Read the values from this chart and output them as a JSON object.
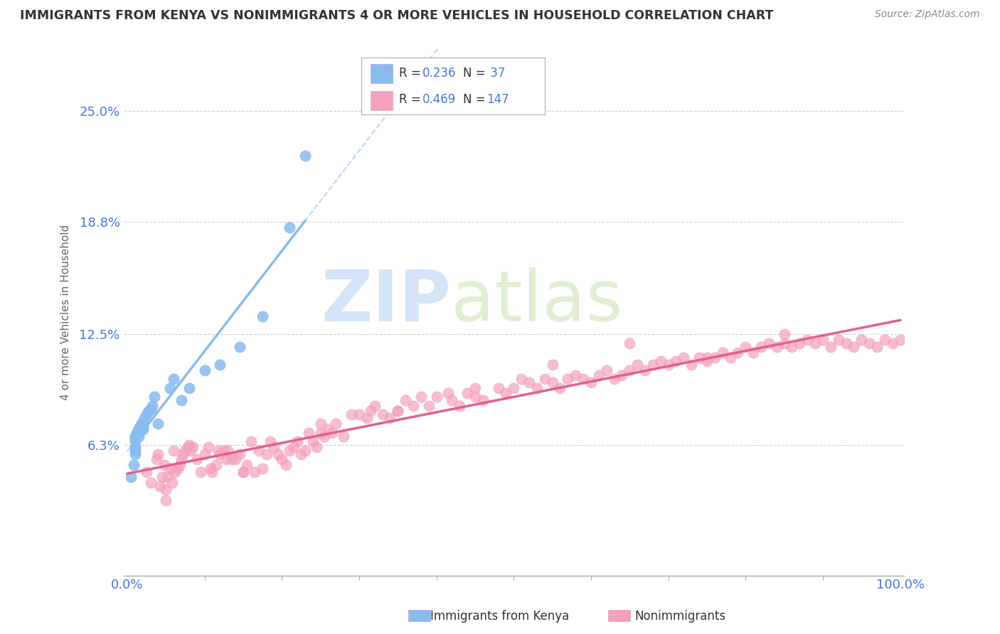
{
  "title": "IMMIGRANTS FROM KENYA VS NONIMMIGRANTS 4 OR MORE VEHICLES IN HOUSEHOLD CORRELATION CHART",
  "source": "Source: ZipAtlas.com",
  "ylabel_ticks": [
    0.063,
    0.125,
    0.188,
    0.25
  ],
  "ylabel_labels": [
    "6.3%",
    "12.5%",
    "18.8%",
    "25.0%"
  ],
  "xlim": [
    -0.005,
    1.005
  ],
  "ylim": [
    -0.01,
    0.285
  ],
  "series1_color": "#88bbee",
  "series1_label": "Immigrants from Kenya",
  "series2_color": "#f4a0bf",
  "series2_label": "Nonimmigrants",
  "legend_text_color": "#333333",
  "legend_val_color": "#4477dd",
  "watermark_zip": "ZIP",
  "watermark_atlas": "atlas",
  "background_color": "#ffffff",
  "grid_color": "#cccccc",
  "tick_color": "#4477dd",
  "title_color": "#333333",
  "kenya_x": [
    0.005,
    0.008,
    0.01,
    0.01,
    0.01,
    0.01,
    0.01,
    0.01,
    0.012,
    0.013,
    0.015,
    0.015,
    0.015,
    0.016,
    0.018,
    0.018,
    0.02,
    0.02,
    0.02,
    0.02,
    0.022,
    0.025,
    0.028,
    0.03,
    0.032,
    0.035,
    0.04,
    0.055,
    0.06,
    0.07,
    0.08,
    0.1,
    0.12,
    0.145,
    0.175,
    0.21,
    0.23
  ],
  "kenya_y": [
    0.045,
    0.052,
    0.058,
    0.06,
    0.062,
    0.065,
    0.067,
    0.068,
    0.07,
    0.07,
    0.068,
    0.07,
    0.072,
    0.073,
    0.074,
    0.075,
    0.072,
    0.073,
    0.075,
    0.076,
    0.078,
    0.08,
    0.082,
    0.083,
    0.085,
    0.09,
    0.075,
    0.095,
    0.1,
    0.088,
    0.095,
    0.105,
    0.108,
    0.118,
    0.135,
    0.185,
    0.225
  ],
  "nonimm_x": [
    0.025,
    0.03,
    0.038,
    0.04,
    0.042,
    0.045,
    0.048,
    0.05,
    0.052,
    0.055,
    0.058,
    0.06,
    0.062,
    0.065,
    0.068,
    0.07,
    0.072,
    0.075,
    0.078,
    0.08,
    0.082,
    0.085,
    0.09,
    0.095,
    0.1,
    0.105,
    0.108,
    0.11,
    0.115,
    0.118,
    0.12,
    0.125,
    0.128,
    0.13,
    0.135,
    0.14,
    0.145,
    0.15,
    0.155,
    0.16,
    0.165,
    0.17,
    0.175,
    0.18,
    0.185,
    0.19,
    0.195,
    0.2,
    0.205,
    0.21,
    0.215,
    0.22,
    0.225,
    0.23,
    0.235,
    0.24,
    0.245,
    0.25,
    0.255,
    0.26,
    0.265,
    0.27,
    0.28,
    0.29,
    0.3,
    0.31,
    0.315,
    0.32,
    0.33,
    0.34,
    0.35,
    0.36,
    0.37,
    0.38,
    0.39,
    0.4,
    0.415,
    0.42,
    0.43,
    0.44,
    0.45,
    0.46,
    0.48,
    0.49,
    0.5,
    0.51,
    0.52,
    0.53,
    0.54,
    0.55,
    0.56,
    0.57,
    0.58,
    0.59,
    0.6,
    0.61,
    0.62,
    0.63,
    0.64,
    0.65,
    0.66,
    0.67,
    0.68,
    0.69,
    0.7,
    0.71,
    0.72,
    0.73,
    0.74,
    0.75,
    0.76,
    0.77,
    0.78,
    0.79,
    0.8,
    0.81,
    0.82,
    0.83,
    0.84,
    0.85,
    0.86,
    0.87,
    0.88,
    0.89,
    0.9,
    0.91,
    0.92,
    0.93,
    0.94,
    0.95,
    0.96,
    0.97,
    0.98,
    0.99,
    1.0,
    0.35,
    0.45,
    0.55,
    0.65,
    0.75,
    0.85,
    0.25,
    0.15,
    0.05
  ],
  "nonimm_y": [
    0.048,
    0.042,
    0.055,
    0.058,
    0.04,
    0.045,
    0.052,
    0.038,
    0.045,
    0.05,
    0.042,
    0.06,
    0.048,
    0.05,
    0.052,
    0.055,
    0.058,
    0.06,
    0.062,
    0.063,
    0.06,
    0.062,
    0.055,
    0.048,
    0.058,
    0.062,
    0.05,
    0.048,
    0.052,
    0.06,
    0.058,
    0.06,
    0.055,
    0.06,
    0.055,
    0.055,
    0.058,
    0.048,
    0.052,
    0.065,
    0.048,
    0.06,
    0.05,
    0.058,
    0.065,
    0.062,
    0.058,
    0.055,
    0.052,
    0.06,
    0.062,
    0.065,
    0.058,
    0.06,
    0.07,
    0.065,
    0.062,
    0.075,
    0.068,
    0.072,
    0.07,
    0.075,
    0.068,
    0.08,
    0.08,
    0.078,
    0.082,
    0.085,
    0.08,
    0.078,
    0.082,
    0.088,
    0.085,
    0.09,
    0.085,
    0.09,
    0.092,
    0.088,
    0.085,
    0.092,
    0.09,
    0.088,
    0.095,
    0.092,
    0.095,
    0.1,
    0.098,
    0.095,
    0.1,
    0.098,
    0.095,
    0.1,
    0.102,
    0.1,
    0.098,
    0.102,
    0.105,
    0.1,
    0.102,
    0.105,
    0.108,
    0.105,
    0.108,
    0.11,
    0.108,
    0.11,
    0.112,
    0.108,
    0.112,
    0.11,
    0.112,
    0.115,
    0.112,
    0.115,
    0.118,
    0.115,
    0.118,
    0.12,
    0.118,
    0.12,
    0.118,
    0.12,
    0.122,
    0.12,
    0.122,
    0.118,
    0.122,
    0.12,
    0.118,
    0.122,
    0.12,
    0.118,
    0.122,
    0.12,
    0.122,
    0.082,
    0.095,
    0.108,
    0.12,
    0.112,
    0.125,
    0.07,
    0.048,
    0.032
  ]
}
